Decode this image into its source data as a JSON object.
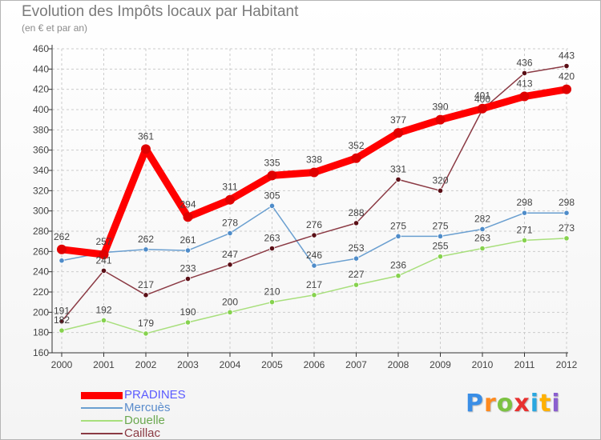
{
  "chart_data": {
    "type": "line",
    "title": "Evolution des Impôts locaux par Habitant",
    "subtitle": "(en € et par an)",
    "xlabel": "",
    "ylabel": "",
    "ylim": [
      160,
      460
    ],
    "yticks": [
      160,
      180,
      200,
      220,
      240,
      260,
      280,
      300,
      320,
      340,
      360,
      380,
      400,
      420,
      440,
      460
    ],
    "x": [
      "2000",
      "2001",
      "2002",
      "2003",
      "2004",
      "2005",
      "2006",
      "2007",
      "2008",
      "2009",
      "2010",
      "2011",
      "2012"
    ],
    "grid": true,
    "legend_position": "bottom-left",
    "series": [
      {
        "name": "PRADINES",
        "color": "#ff0000",
        "marker_color": "#e00000",
        "label_color": "#444444",
        "values": [
          262,
          257,
          361,
          294,
          311,
          335,
          338,
          352,
          377,
          390,
          401,
          413,
          420
        ]
      },
      {
        "name": "Mercuès",
        "color": "#6a9fd0",
        "marker_color": "#4f8cc9",
        "label_color": "#6a9fd0",
        "values": [
          251,
          259,
          262,
          261,
          278,
          305,
          246,
          253,
          275,
          275,
          282,
          298,
          298
        ]
      },
      {
        "name": "Douelle",
        "color": "#a8df7c",
        "marker_color": "#86d24e",
        "label_color": "#86d24e",
        "values": [
          182,
          192,
          179,
          190,
          200,
          210,
          217,
          227,
          236,
          255,
          263,
          271,
          273
        ]
      },
      {
        "name": "Caillac",
        "color": "#8b3a44",
        "marker_color": "#5a0f16",
        "label_color": "#8b3a44",
        "values": [
          191,
          241,
          217,
          233,
          247,
          263,
          276,
          288,
          331,
          320,
          400,
          436,
          443
        ]
      }
    ],
    "point_labels": {
      "PRADINES": [
        "262",
        "257",
        "361",
        "294",
        "311",
        "335",
        "338",
        "352",
        "377",
        "390",
        "401",
        "413",
        "420"
      ],
      "Mercuès": [
        "",
        "",
        "262",
        "261",
        "278",
        "305",
        "246",
        "253",
        "275",
        "275",
        "282",
        "298",
        "298"
      ],
      "Douelle": [
        "182",
        "192",
        "179",
        "190",
        "200",
        "210",
        "217",
        "227",
        "236",
        "255",
        "263",
        "271",
        "273"
      ],
      "Caillac": [
        "191",
        "241",
        "217",
        "233",
        "247",
        "263",
        "276",
        "288",
        "331",
        "320",
        "400",
        "436",
        "443"
      ]
    }
  },
  "legend": {
    "items": [
      {
        "label": "PRADINES",
        "color": "#ff0000",
        "text_color": "#5b5bff",
        "thickness": 9
      },
      {
        "label": "Mercuès",
        "color": "#6a9fd0",
        "text_color": "#5a8ccc",
        "thickness": 2
      },
      {
        "label": "Douelle",
        "color": "#a8df7c",
        "text_color": "#6aa84f",
        "thickness": 2
      },
      {
        "label": "Caillac",
        "color": "#8b3a44",
        "text_color": "#8b3a44",
        "thickness": 2
      }
    ]
  },
  "logo": {
    "letters": [
      "P",
      "r",
      "o",
      "x",
      "i",
      "t",
      "i"
    ],
    "colors": [
      "#3a8ee6",
      "#ff8a1e",
      "#7cc242",
      "#e8302f",
      "#2aa7e0",
      "#ffb000",
      "#8b5fcf"
    ]
  }
}
